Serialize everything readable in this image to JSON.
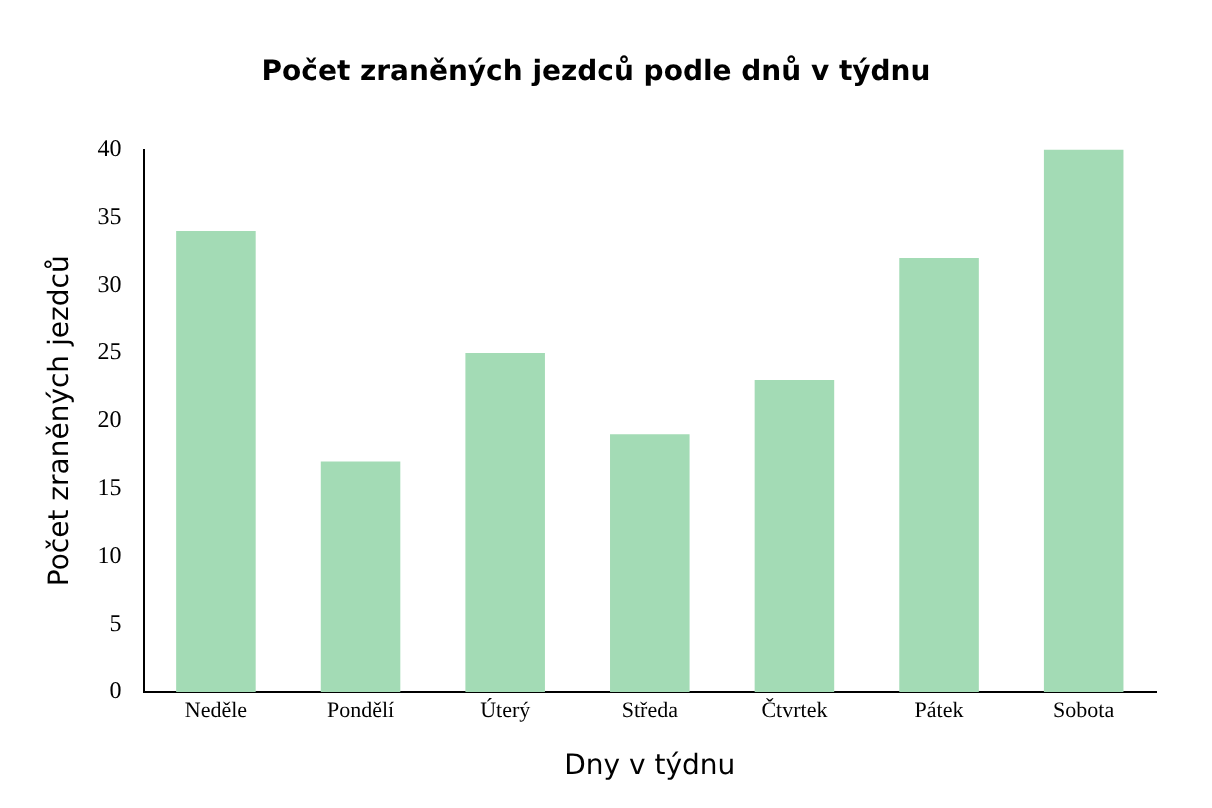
{
  "chart_data": {
    "type": "bar",
    "title": "Počet zraněných jezdců podle dnů v týdnu",
    "xlabel": "Dny v týdnu",
    "ylabel": "Počet zraněných jezdců",
    "categories": [
      "Neděle",
      "Pondělí",
      "Úterý",
      "Středa",
      "Čtvrtek",
      "Pátek",
      "Sobota"
    ],
    "values": [
      34,
      17,
      25,
      19,
      23,
      32,
      40
    ],
    "color": "#a3dbb5",
    "ylim": [
      0,
      40
    ],
    "yticks": [
      0,
      5,
      10,
      15,
      20,
      25,
      30,
      35,
      40
    ],
    "grid": false,
    "legend": false
  }
}
